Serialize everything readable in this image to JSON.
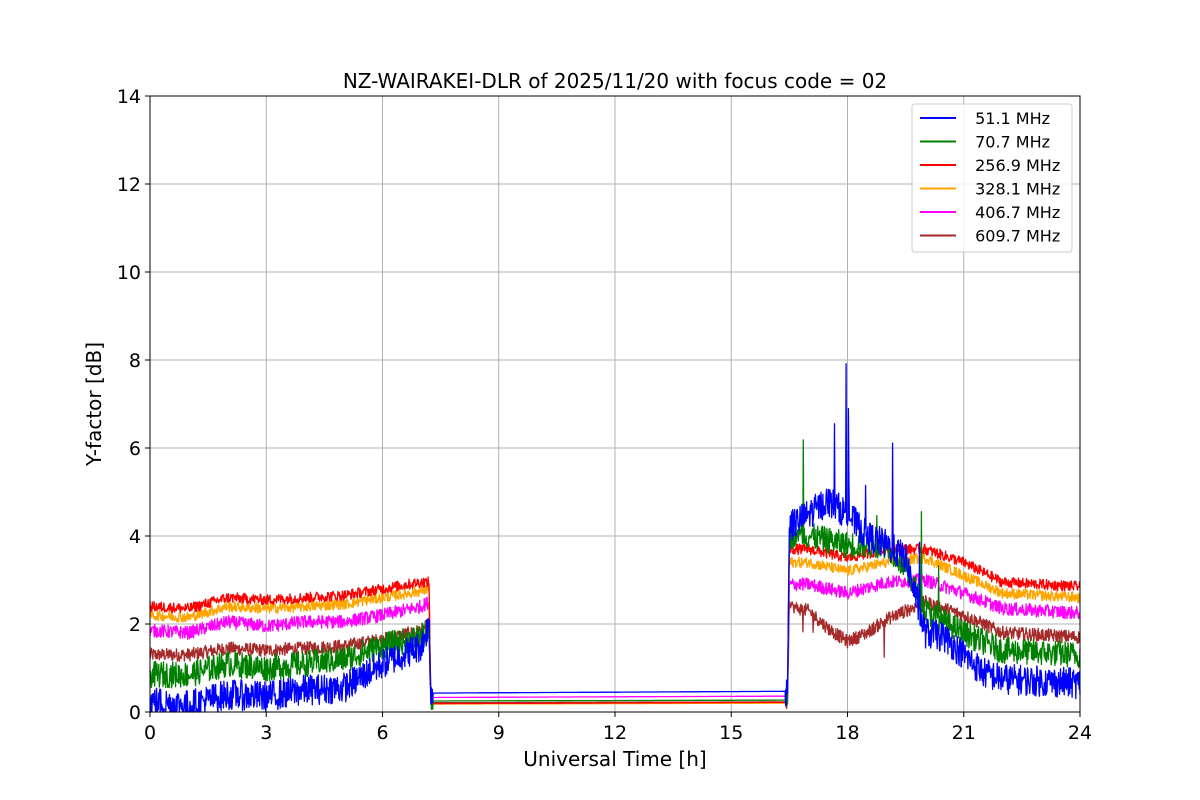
{
  "chart_data": {
    "type": "line",
    "title": "NZ-WAIRAKEI-DLR of 2025/11/20 with focus code = 02",
    "xlabel": "Universal Time [h]",
    "ylabel": "Y-factor [dB]",
    "xlim": [
      0,
      24
    ],
    "ylim": [
      0,
      14
    ],
    "xticks": [
      0,
      3,
      6,
      9,
      12,
      15,
      18,
      21,
      24
    ],
    "yticks": [
      0,
      2,
      4,
      6,
      8,
      10,
      12,
      14
    ],
    "grid": true,
    "legend_position": "top-right",
    "series": [
      {
        "name": " 51.1 MHz",
        "color": "#0000ff",
        "noise": 0.35,
        "points": [
          [
            0,
            0.25
          ],
          [
            1,
            0.15
          ],
          [
            2,
            0.4
          ],
          [
            3,
            0.35
          ],
          [
            4,
            0.5
          ],
          [
            5,
            0.55
          ],
          [
            6,
            1.1
          ],
          [
            7,
            1.5
          ],
          [
            7.2,
            2.0
          ],
          [
            7.25,
            0.43
          ],
          [
            16.45,
            0.47
          ],
          [
            16.5,
            4.2
          ],
          [
            17,
            4.5
          ],
          [
            17.5,
            4.8
          ],
          [
            18,
            4.5
          ],
          [
            18.5,
            4.0
          ],
          [
            19,
            3.8
          ],
          [
            19.5,
            3.5
          ],
          [
            20,
            1.8
          ],
          [
            20.5,
            1.7
          ],
          [
            21,
            1.3
          ],
          [
            21.5,
            0.9
          ],
          [
            22,
            0.75
          ],
          [
            23,
            0.7
          ],
          [
            24,
            0.65
          ]
        ]
      },
      {
        "name": " 70.7 MHz",
        "color": "#008000",
        "noise": 0.3,
        "points": [
          [
            0,
            0.85
          ],
          [
            1,
            0.85
          ],
          [
            2,
            1.1
          ],
          [
            3,
            1.0
          ],
          [
            4,
            1.1
          ],
          [
            5,
            1.2
          ],
          [
            6,
            1.5
          ],
          [
            7,
            1.7
          ],
          [
            7.2,
            1.8
          ],
          [
            7.25,
            0.25
          ],
          [
            16.45,
            0.27
          ],
          [
            16.5,
            4.0
          ],
          [
            17,
            4.0
          ],
          [
            18,
            3.8
          ],
          [
            19,
            3.8
          ],
          [
            19.5,
            3.3
          ],
          [
            20,
            2.3
          ],
          [
            21,
            1.8
          ],
          [
            22,
            1.4
          ],
          [
            23,
            1.35
          ],
          [
            24,
            1.3
          ]
        ]
      },
      {
        "name": " 256.9 MHz",
        "color": "#ff0000",
        "noise": 0.12,
        "points": [
          [
            0,
            2.4
          ],
          [
            1,
            2.35
          ],
          [
            2,
            2.6
          ],
          [
            3,
            2.55
          ],
          [
            4,
            2.6
          ],
          [
            5,
            2.65
          ],
          [
            6,
            2.8
          ],
          [
            7,
            2.95
          ],
          [
            7.2,
            2.95
          ],
          [
            7.25,
            0.19
          ],
          [
            16.45,
            0.22
          ],
          [
            16.5,
            3.7
          ],
          [
            17,
            3.7
          ],
          [
            18,
            3.5
          ],
          [
            19,
            3.7
          ],
          [
            20,
            3.7
          ],
          [
            21,
            3.4
          ],
          [
            22,
            2.95
          ],
          [
            23,
            2.9
          ],
          [
            24,
            2.85
          ]
        ]
      },
      {
        "name": " 328.1 MHz",
        "color": "#ffa500",
        "noise": 0.12,
        "points": [
          [
            0,
            2.2
          ],
          [
            1,
            2.15
          ],
          [
            2,
            2.4
          ],
          [
            3,
            2.35
          ],
          [
            4,
            2.4
          ],
          [
            5,
            2.45
          ],
          [
            6,
            2.6
          ],
          [
            7,
            2.75
          ],
          [
            7.2,
            2.8
          ],
          [
            7.25,
            0.18
          ],
          [
            16.45,
            0.2
          ],
          [
            16.5,
            3.4
          ],
          [
            17,
            3.4
          ],
          [
            18,
            3.2
          ],
          [
            19,
            3.4
          ],
          [
            20,
            3.5
          ],
          [
            21,
            3.1
          ],
          [
            22,
            2.7
          ],
          [
            23,
            2.65
          ],
          [
            24,
            2.6
          ]
        ]
      },
      {
        "name": " 406.7 MHz",
        "color": "#ff00ff",
        "noise": 0.15,
        "points": [
          [
            0,
            1.85
          ],
          [
            1,
            1.8
          ],
          [
            2,
            2.05
          ],
          [
            3,
            1.95
          ],
          [
            4,
            2.05
          ],
          [
            5,
            2.05
          ],
          [
            6,
            2.2
          ],
          [
            7,
            2.4
          ],
          [
            7.2,
            2.5
          ],
          [
            7.25,
            0.33
          ],
          [
            16.45,
            0.36
          ],
          [
            16.5,
            2.9
          ],
          [
            17,
            2.9
          ],
          [
            18,
            2.7
          ],
          [
            19,
            2.95
          ],
          [
            20,
            3.0
          ],
          [
            21,
            2.7
          ],
          [
            22,
            2.35
          ],
          [
            23,
            2.3
          ],
          [
            24,
            2.25
          ]
        ]
      },
      {
        "name": " 609.7 MHz",
        "color": "#a52a2a",
        "noise": 0.15,
        "points": [
          [
            0,
            1.3
          ],
          [
            1,
            1.3
          ],
          [
            2,
            1.45
          ],
          [
            3,
            1.4
          ],
          [
            4,
            1.45
          ],
          [
            5,
            1.5
          ],
          [
            6,
            1.65
          ],
          [
            7,
            1.85
          ],
          [
            7.2,
            2.0
          ],
          [
            7.25,
            0.21
          ],
          [
            16.45,
            0.23
          ],
          [
            16.5,
            2.4
          ],
          [
            17,
            2.3
          ],
          [
            17.5,
            1.9
          ],
          [
            18,
            1.6
          ],
          [
            18.5,
            1.8
          ],
          [
            19,
            2.1
          ],
          [
            20,
            2.5
          ],
          [
            21,
            2.2
          ],
          [
            22,
            1.8
          ],
          [
            23,
            1.75
          ],
          [
            24,
            1.7
          ]
        ]
      }
    ]
  }
}
